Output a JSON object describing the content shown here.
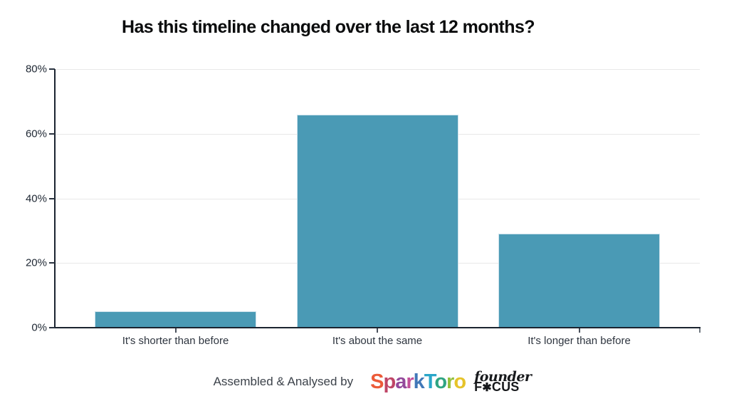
{
  "page": {
    "background": "#ffffff"
  },
  "chart_data": {
    "type": "bar",
    "title": "Has this timeline changed over the last 12 months?",
    "categories": [
      "It's shorter than before",
      "It's about the same",
      "It's longer than before"
    ],
    "values": [
      5,
      66,
      29
    ],
    "value_unit": "%",
    "xlabel": "",
    "ylabel": "",
    "ylim": [
      0,
      80
    ],
    "ytick_labels": [
      "0%",
      "20%",
      "40%",
      "60%",
      "80%"
    ],
    "ytick_values": [
      0,
      20,
      40,
      60,
      80
    ],
    "grid": true,
    "legend": false,
    "bar_color": "#4A9AB5",
    "bar_edge_color": "#CDE2EC",
    "axis_color": "#1B2430",
    "gridline_color": "#E8E8E8",
    "tick_label_color": "#1E2733",
    "category_label_color": "#2E353F"
  },
  "footer": {
    "credit_text": "Assembled & Analysed by",
    "sparktoro_logo": {
      "name": "SparkToro",
      "letters": [
        "S",
        "p",
        "a",
        "r",
        "k",
        "T",
        "o",
        "r",
        "o"
      ],
      "letter_colors": [
        "#EC5B39",
        "#BF4566",
        "#93499B",
        "#C24F99",
        "#4178B8",
        "#2AA6C9",
        "#2FA482",
        "#93C03D",
        "#E6C32A"
      ]
    },
    "founderfocus_logo": {
      "name": "founderFocus",
      "line1": "founder",
      "line2_prefix": "F",
      "line2_star": "✱",
      "line2_suffix": "CUS",
      "color": "#17191C"
    }
  }
}
